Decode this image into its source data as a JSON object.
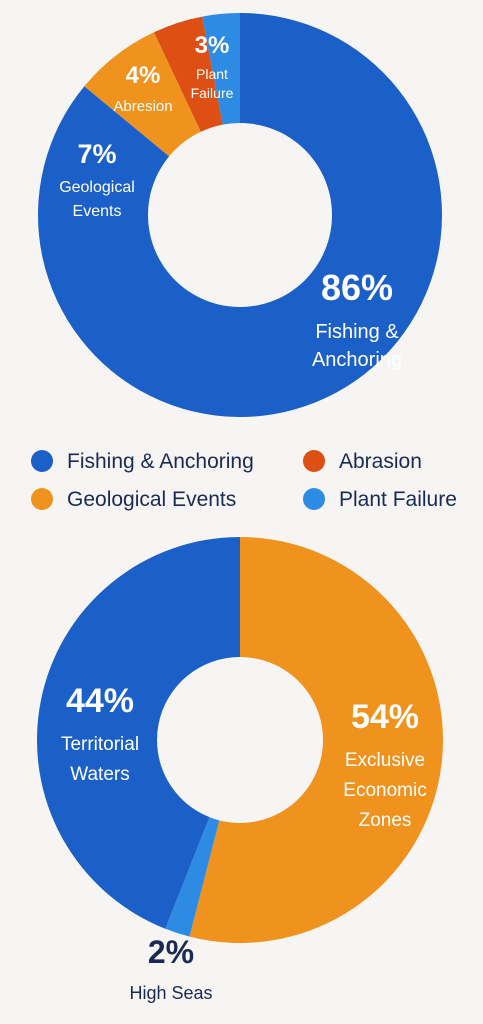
{
  "chart_data": [
    {
      "type": "pie",
      "variant": "donut",
      "slices": [
        {
          "label": "Fishing & Anchoring",
          "label_lines": [
            "Fishing &",
            "Anchoring"
          ],
          "value": 86,
          "value_label": "86%",
          "color": "#1b5fc9"
        },
        {
          "label": "Geological Events",
          "label_lines": [
            "Geological",
            "Events"
          ],
          "value": 7,
          "value_label": "7%",
          "color": "#f0921e"
        },
        {
          "label": "Abrasion",
          "label_lines": [
            "Abresion"
          ],
          "value": 4,
          "value_label": "4%",
          "color": "#dd4f12"
        },
        {
          "label": "Plant Failure",
          "label_lines": [
            "Plant",
            "Failure"
          ],
          "value": 3,
          "value_label": "3%",
          "color": "#2e8be3"
        }
      ],
      "legend": {
        "placement": "bottom",
        "items": [
          {
            "label": "Fishing & Anchoring",
            "color": "#1b5fc9"
          },
          {
            "label": "Abrasion",
            "color": "#dd4f12"
          },
          {
            "label": "Geological Events",
            "color": "#f0921e"
          },
          {
            "label": "Plant Failure",
            "color": "#2e8be3"
          }
        ]
      }
    },
    {
      "type": "pie",
      "variant": "donut",
      "slices": [
        {
          "label": "Exclusive Economic Zones",
          "label_lines": [
            "Exclusive",
            "Economic",
            "Zones"
          ],
          "value": 54,
          "value_label": "54%",
          "color": "#f0921e"
        },
        {
          "label": "High Seas",
          "label_lines": [
            "High Seas"
          ],
          "value": 2,
          "value_label": "2%",
          "color": "#2e8be3",
          "label_outside": true
        },
        {
          "label": "Territorial Waters",
          "label_lines": [
            "Territorial",
            "Waters"
          ],
          "value": 44,
          "value_label": "44%",
          "color": "#1b5fc9"
        }
      ]
    }
  ]
}
